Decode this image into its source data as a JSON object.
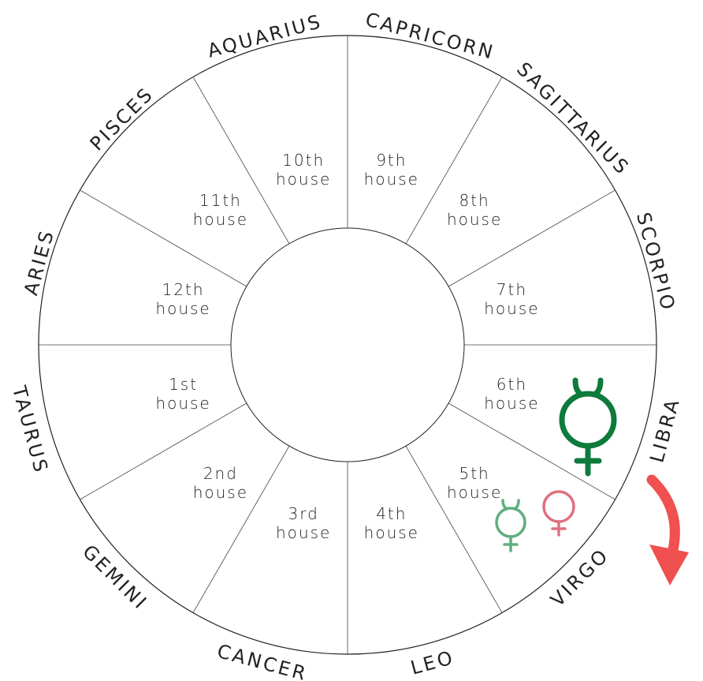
{
  "houses": [
    {
      "number": "1st",
      "word": "house"
    },
    {
      "number": "2nd",
      "word": "house"
    },
    {
      "number": "3rd",
      "word": "house"
    },
    {
      "number": "4th",
      "word": "house"
    },
    {
      "number": "5th",
      "word": "house"
    },
    {
      "number": "6th",
      "word": "house"
    },
    {
      "number": "7th",
      "word": "house"
    },
    {
      "number": "8th",
      "word": "house"
    },
    {
      "number": "9th",
      "word": "house"
    },
    {
      "number": "10th",
      "word": "house"
    },
    {
      "number": "11th",
      "word": "house"
    },
    {
      "number": "12th",
      "word": "house"
    }
  ],
  "signs": [
    "TAURUS",
    "GEMINI",
    "CANCER",
    "LEO",
    "VIRGO",
    "LIBRA",
    "SCORPIO",
    "SAGITTARIUS",
    "CAPRICORN",
    "AQUARIUS",
    "PISCES",
    "ARIES"
  ]
}
